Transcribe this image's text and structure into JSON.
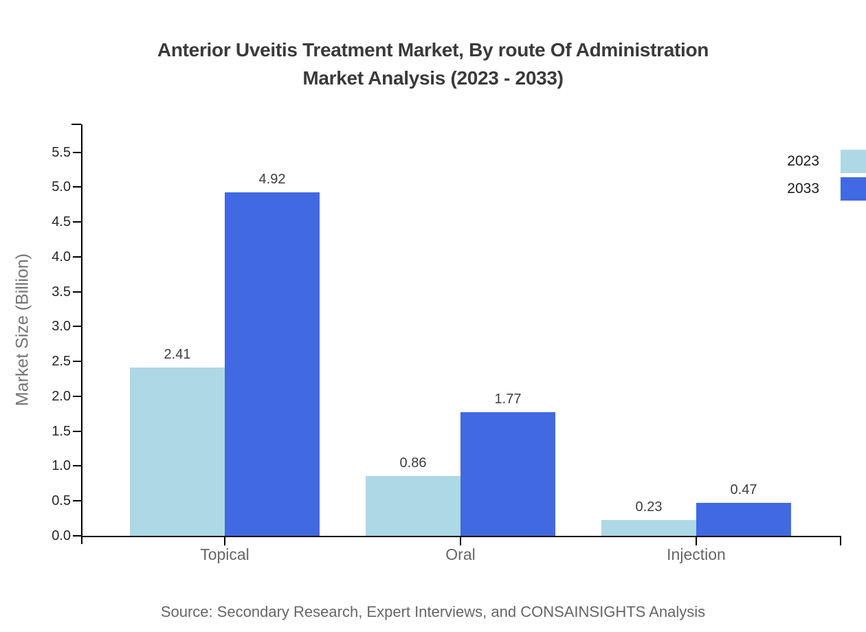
{
  "chart_data": {
    "type": "bar",
    "title": "Anterior Uveitis Treatment Market, By route Of Administration Market Analysis (2023 - 2033)",
    "title_lines": [
      "Anterior Uveitis Treatment Market, By route Of Administration",
      "Market Analysis (2023 - 2033)"
    ],
    "categories": [
      "Topical",
      "Oral",
      "Injection"
    ],
    "series": [
      {
        "name": "2023",
        "color": "#ADD8E6",
        "values": [
          2.41,
          0.86,
          0.23
        ]
      },
      {
        "name": "2033",
        "color": "#4169E1",
        "values": [
          4.92,
          1.77,
          0.47
        ]
      }
    ],
    "xlabel": "",
    "ylabel": "Market Size (Billion)",
    "ylim": [
      0,
      5.9
    ],
    "yticks": [
      "0.0",
      "0.5",
      "1.0",
      "1.5",
      "2.0",
      "2.5",
      "3.0",
      "3.5",
      "4.0",
      "4.5",
      "5.0",
      "5.5"
    ],
    "grid": false,
    "legend_position": "top-right",
    "source": "Source: Secondary Research, Expert Interviews, and CONSAINSIGHTS Analysis"
  }
}
